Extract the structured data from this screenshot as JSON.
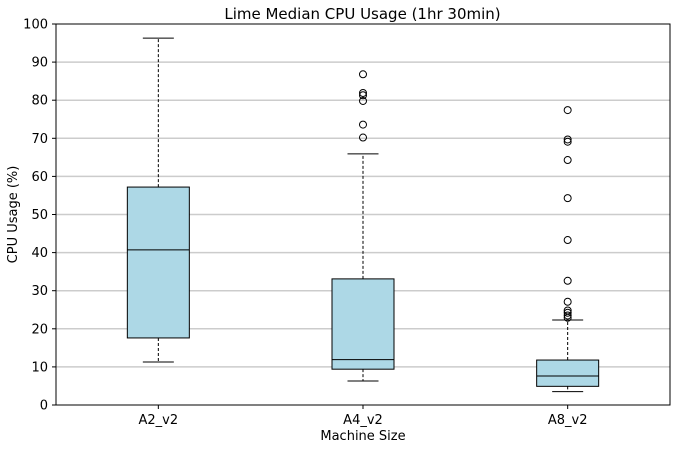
{
  "chart_data": {
    "type": "box",
    "title": "Lime Median CPU Usage (1hr 30min)",
    "xlabel": "Machine Size",
    "ylabel": "CPU Usage (%)",
    "ylim": [
      0,
      100
    ],
    "yticks": [
      0,
      10,
      20,
      30,
      40,
      50,
      60,
      70,
      80,
      90,
      100
    ],
    "grid": "horizontal",
    "colors": {
      "box_fill": "#add8e6",
      "edge": "#000000",
      "grid": "#cccccc"
    },
    "categories": [
      "A2_v2",
      "A4_v2",
      "A8_v2"
    ],
    "boxes": [
      {
        "label": "A2_v2",
        "whisker_low": 11.3,
        "q1": 17.6,
        "median": 40.7,
        "q3": 57.2,
        "whisker_high": 96.3,
        "outliers": []
      },
      {
        "label": "A4_v2",
        "whisker_low": 6.3,
        "q1": 9.4,
        "median": 11.9,
        "q3": 33.1,
        "whisker_high": 65.9,
        "outliers": [
          70.2,
          73.6,
          79.8,
          81.3,
          81.9,
          86.8
        ]
      },
      {
        "label": "A8_v2",
        "whisker_low": 3.5,
        "q1": 4.9,
        "median": 7.6,
        "q3": 11.8,
        "whisker_high": 22.3,
        "outliers": [
          22.9,
          23.5,
          24.2,
          24.8,
          27.1,
          32.6,
          43.3,
          54.3,
          64.3,
          69.1,
          69.7,
          77.4
        ]
      }
    ]
  }
}
